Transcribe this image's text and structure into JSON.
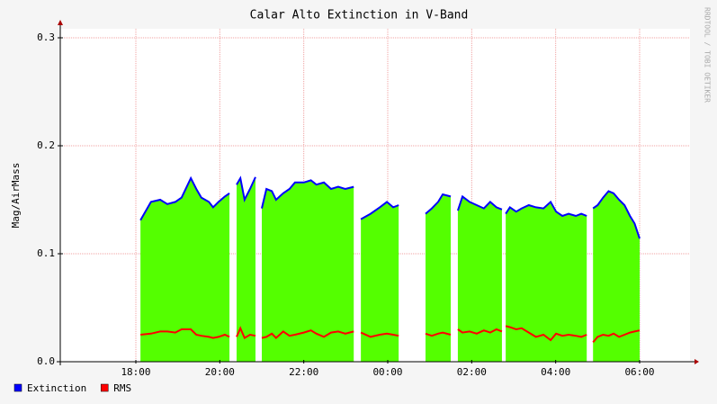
{
  "chart_data": {
    "type": "line",
    "title": "Calar Alto Extinction in V-Band",
    "y_label": "Mag/AirMass",
    "watermark": "RRDTOOL / TOBI OETIKER",
    "x": [
      18.11,
      18.36,
      18.58,
      18.75,
      18.94,
      19.09,
      19.31,
      19.44,
      19.56,
      19.74,
      19.84,
      19.97,
      20.12,
      20.23,
      20.31,
      20.4,
      20.49,
      20.59,
      20.72,
      20.85,
      20.92,
      21.0,
      21.11,
      21.24,
      21.34,
      21.51,
      21.66,
      21.79,
      22.0,
      22.17,
      22.3,
      22.48,
      22.65,
      22.82,
      22.99,
      23.19,
      23.27,
      23.36,
      23.59,
      23.81,
      23.98,
      24.13,
      24.26,
      24.5,
      24.9,
      25.05,
      25.2,
      25.31,
      25.5,
      25.58,
      25.67,
      25.78,
      25.95,
      26.12,
      26.29,
      26.44,
      26.59,
      26.72,
      26.76,
      26.81,
      26.91,
      27.06,
      27.19,
      27.36,
      27.53,
      27.71,
      27.88,
      28.01,
      28.16,
      28.31,
      28.48,
      28.61,
      28.74,
      28.8,
      28.89,
      29.0,
      29.13,
      29.26,
      29.38,
      29.51,
      29.64,
      29.77,
      29.88,
      30.0
    ],
    "series": [
      {
        "name": "Extinction",
        "color": "#0000ff",
        "fill_color": "#54ff00",
        "values": [
          0.131,
          0.148,
          0.15,
          0.146,
          0.148,
          0.152,
          0.17,
          0.16,
          0.152,
          0.148,
          0.143,
          0.148,
          0.153,
          0.156,
          null,
          0.164,
          0.17,
          0.15,
          0.16,
          0.171,
          null,
          0.142,
          0.16,
          0.158,
          0.15,
          0.156,
          0.16,
          0.166,
          0.166,
          0.168,
          0.164,
          0.166,
          0.16,
          0.162,
          0.16,
          0.162,
          null,
          0.132,
          0.137,
          0.143,
          0.148,
          0.143,
          0.145,
          null,
          0.137,
          0.142,
          0.148,
          0.155,
          0.153,
          null,
          0.14,
          0.153,
          0.148,
          0.145,
          0.142,
          0.148,
          0.143,
          0.141,
          null,
          0.137,
          0.143,
          0.139,
          0.142,
          0.145,
          0.143,
          0.142,
          0.148,
          0.139,
          0.135,
          0.137,
          0.135,
          0.137,
          0.135,
          null,
          0.142,
          0.145,
          0.152,
          0.158,
          0.156,
          0.15,
          0.145,
          0.135,
          0.128,
          0.114
        ]
      },
      {
        "name": "RMS",
        "color": "#ff0000",
        "values": [
          0.025,
          0.026,
          0.028,
          0.028,
          0.027,
          0.03,
          0.03,
          0.025,
          0.024,
          0.023,
          0.022,
          0.023,
          0.025,
          0.023,
          null,
          0.023,
          0.031,
          0.022,
          0.025,
          0.024,
          null,
          0.022,
          0.023,
          0.026,
          0.022,
          0.028,
          0.024,
          0.025,
          0.027,
          0.029,
          0.026,
          0.023,
          0.027,
          0.028,
          0.026,
          0.028,
          null,
          0.027,
          0.023,
          0.025,
          0.026,
          0.025,
          0.024,
          null,
          0.026,
          0.024,
          0.026,
          0.027,
          0.025,
          null,
          0.03,
          0.027,
          0.028,
          0.026,
          0.029,
          0.027,
          0.03,
          0.028,
          null,
          0.033,
          0.032,
          0.03,
          0.031,
          0.027,
          0.023,
          0.025,
          0.02,
          0.026,
          0.024,
          0.025,
          0.024,
          0.023,
          0.025,
          null,
          0.018,
          0.023,
          0.025,
          0.024,
          0.026,
          0.023,
          0.025,
          0.027,
          0.028,
          0.029
        ]
      }
    ],
    "xlim": [
      16.2,
      31.2
    ],
    "xticks": [
      {
        "value": 18,
        "label": "18:00"
      },
      {
        "value": 20,
        "label": "20:00"
      },
      {
        "value": 22,
        "label": "22:00"
      },
      {
        "value": 24,
        "label": "00:00"
      },
      {
        "value": 26,
        "label": "02:00"
      },
      {
        "value": 28,
        "label": "04:00"
      },
      {
        "value": 30,
        "label": "06:00"
      }
    ],
    "ylim": [
      0,
      0.3
    ],
    "yticks": [
      {
        "value": 0,
        "label": "0.0"
      },
      0.1,
      0.2,
      0.3
    ],
    "grid": true,
    "legend": "bottom-left"
  }
}
